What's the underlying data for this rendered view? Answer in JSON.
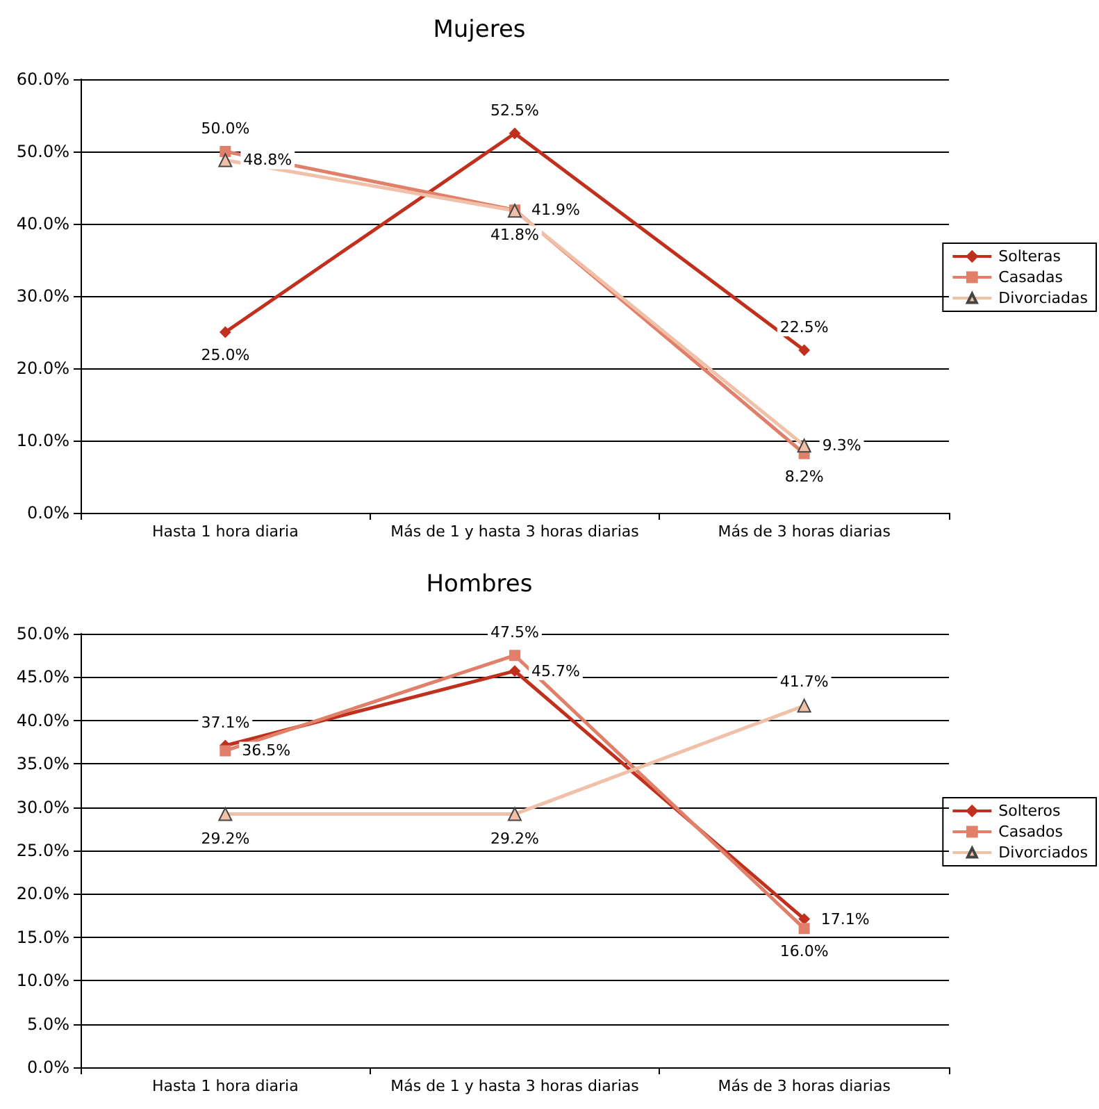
{
  "chart_data": [
    {
      "type": "line",
      "title": "Mujeres",
      "categories": [
        "Hasta 1 hora diaria",
        "Más de 1 y hasta 3 horas diarias",
        "Más de 3 horas diarias"
      ],
      "series": [
        {
          "name": "Solteras",
          "color": "#c0301c",
          "marker": "diamond",
          "values": [
            25.0,
            52.5,
            22.5
          ],
          "value_labels": [
            "25.0%",
            "52.5%",
            "22.5%"
          ]
        },
        {
          "name": "Casadas",
          "color": "#e0806a",
          "marker": "square",
          "values": [
            50.0,
            41.9,
            8.2
          ],
          "value_labels": [
            "50.0%",
            "41.9%",
            "8.2%"
          ]
        },
        {
          "name": "Divorciadas",
          "color": "#f0c0a8",
          "marker": "triangle",
          "values": [
            48.8,
            41.8,
            9.3
          ],
          "value_labels": [
            "48.8%",
            "41.8%",
            "9.3%"
          ]
        }
      ],
      "ylim": [
        0,
        60
      ],
      "yticks": [
        {
          "value": 0,
          "label": "0.0%"
        },
        {
          "value": 10,
          "label": "10.0%"
        },
        {
          "value": 20,
          "label": "20.0%"
        },
        {
          "value": 30,
          "label": "30.0%"
        },
        {
          "value": 40,
          "label": "40.0%"
        },
        {
          "value": 50,
          "label": "50.0%"
        },
        {
          "value": 60,
          "label": "60.0%"
        }
      ],
      "grid": "y",
      "legend": "right"
    },
    {
      "type": "line",
      "title": "Hombres",
      "categories": [
        "Hasta 1 hora diaria",
        "Más de 1 y hasta 3 horas diarias",
        "Más de 3 horas diarias"
      ],
      "series": [
        {
          "name": "Solteros",
          "color": "#c0301c",
          "marker": "diamond",
          "values": [
            37.1,
            45.7,
            17.1
          ],
          "value_labels": [
            "37.1%",
            "45.7%",
            "17.1%"
          ]
        },
        {
          "name": "Casados",
          "color": "#e0806a",
          "marker": "square",
          "values": [
            36.5,
            47.5,
            16.0
          ],
          "value_labels": [
            "36.5%",
            "47.5%",
            "16.0%"
          ]
        },
        {
          "name": "Divorciados",
          "color": "#f0c0a8",
          "marker": "triangle",
          "values": [
            29.2,
            29.2,
            41.7
          ],
          "value_labels": [
            "29.2%",
            "29.2%",
            "41.7%"
          ]
        }
      ],
      "ylim": [
        0,
        50
      ],
      "yticks": [
        {
          "value": 0,
          "label": "0.0%"
        },
        {
          "value": 5,
          "label": "5.0%"
        },
        {
          "value": 10,
          "label": "10.0%"
        },
        {
          "value": 15,
          "label": "15.0%"
        },
        {
          "value": 20,
          "label": "20.0%"
        },
        {
          "value": 25,
          "label": "25.0%"
        },
        {
          "value": 30,
          "label": "30.0%"
        },
        {
          "value": 35,
          "label": "35.0%"
        },
        {
          "value": 40,
          "label": "40.0%"
        },
        {
          "value": 45,
          "label": "45.0%"
        },
        {
          "value": 50,
          "label": "50.0%"
        }
      ],
      "grid": "y",
      "legend": "right"
    }
  ]
}
